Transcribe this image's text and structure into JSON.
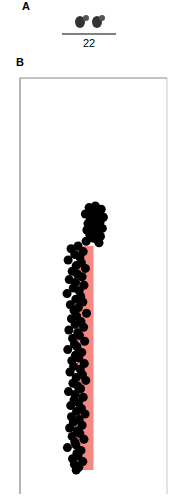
{
  "chart_data": {
    "type": "scatter",
    "annotations": [
      "A",
      "22",
      "B"
    ],
    "xlim": [
      -2,
      2
    ],
    "xticks": [
      -2,
      -1,
      0,
      1,
      2
    ],
    "ylim": [
      0,
      52
    ],
    "yticks": [
      0,
      10,
      20,
      30,
      40,
      50
    ],
    "grid": true,
    "tick_labels": false,
    "marker": "circle",
    "regions": [
      {
        "start": 21,
        "end": 49,
        "value": -0.45,
        "color": "#f4736f"
      }
    ],
    "series": [
      {
        "color": "#000000",
        "x": [
          0.05,
          -0.12,
          0.21,
          -0.03,
          0.14,
          -0.22,
          0.08,
          0.27,
          -0.09,
          0.02,
          0.18,
          -0.15,
          0.11,
          -0.05,
          0.24,
          -0.18,
          0.06,
          0.13,
          -0.1,
          0.19,
          -0.02,
          0.09,
          -0.2,
          0.15
        ],
        "values": [
          16.0,
          16.2,
          16.4,
          16.6,
          16.8,
          17.0,
          17.2,
          17.4,
          17.6,
          17.8,
          18.0,
          18.2,
          18.4,
          18.6,
          18.8,
          19.0,
          19.2,
          19.4,
          19.6,
          19.8,
          20.0,
          20.2,
          20.4,
          20.6
        ]
      },
      {
        "color": "#000000",
        "x": [
          -0.42,
          -0.61,
          -0.28,
          -0.51,
          -0.37,
          -0.69,
          -0.33,
          -0.47,
          -0.22,
          -0.58,
          -0.44,
          -0.31,
          -0.66,
          -0.49,
          -0.26,
          -0.55,
          -0.39,
          -0.72,
          -0.35,
          -0.48,
          -0.29,
          -0.63,
          -0.41,
          -0.53,
          -0.19,
          -0.46,
          -0.6,
          -0.34,
          -0.5,
          -0.27,
          -0.67,
          -0.43,
          -0.38,
          -0.57,
          -0.24,
          -0.52,
          -0.45,
          -0.7,
          -0.32,
          -0.49,
          -0.4,
          -0.59,
          -0.25,
          -0.54,
          -0.36,
          -0.64,
          -0.3,
          -0.47,
          -0.21,
          -0.56,
          -0.43,
          -0.35,
          -0.68,
          -0.5,
          -0.28,
          -0.53,
          -0.41,
          -0.62,
          -0.33,
          -0.46,
          -0.23,
          -0.6,
          -0.39,
          -0.55,
          -0.31,
          -0.65,
          -0.44,
          -0.37,
          -0.58,
          -0.26,
          -0.51,
          -0.48,
          -0.71,
          -0.34,
          -0.45,
          -0.42,
          -0.57,
          -0.29,
          -0.52,
          -0.4,
          -0.47
        ],
        "values": [
          21,
          21.35,
          21.7,
          22.05,
          22.4,
          22.75,
          23.1,
          23.45,
          23.8,
          24.15,
          24.5,
          24.85,
          25.2,
          25.55,
          25.9,
          26.25,
          26.6,
          26.95,
          27.3,
          27.65,
          28,
          28.35,
          28.7,
          29.05,
          29.4,
          29.75,
          30.1,
          30.45,
          30.8,
          31.15,
          31.5,
          31.85,
          32.2,
          32.55,
          32.9,
          33.25,
          33.6,
          33.95,
          34.3,
          34.65,
          35,
          35.35,
          35.7,
          36.05,
          36.4,
          36.75,
          37.1,
          37.45,
          37.8,
          38.15,
          38.5,
          38.85,
          39.2,
          39.55,
          39.9,
          40.25,
          40.6,
          40.95,
          41.3,
          41.65,
          42,
          42.35,
          42.7,
          43.05,
          43.4,
          43.75,
          44.1,
          44.45,
          44.8,
          45.15,
          45.5,
          45.85,
          46.2,
          46.55,
          46.9,
          47.25,
          47.6,
          47.95,
          48.3,
          48.65,
          49
        ]
      }
    ]
  }
}
